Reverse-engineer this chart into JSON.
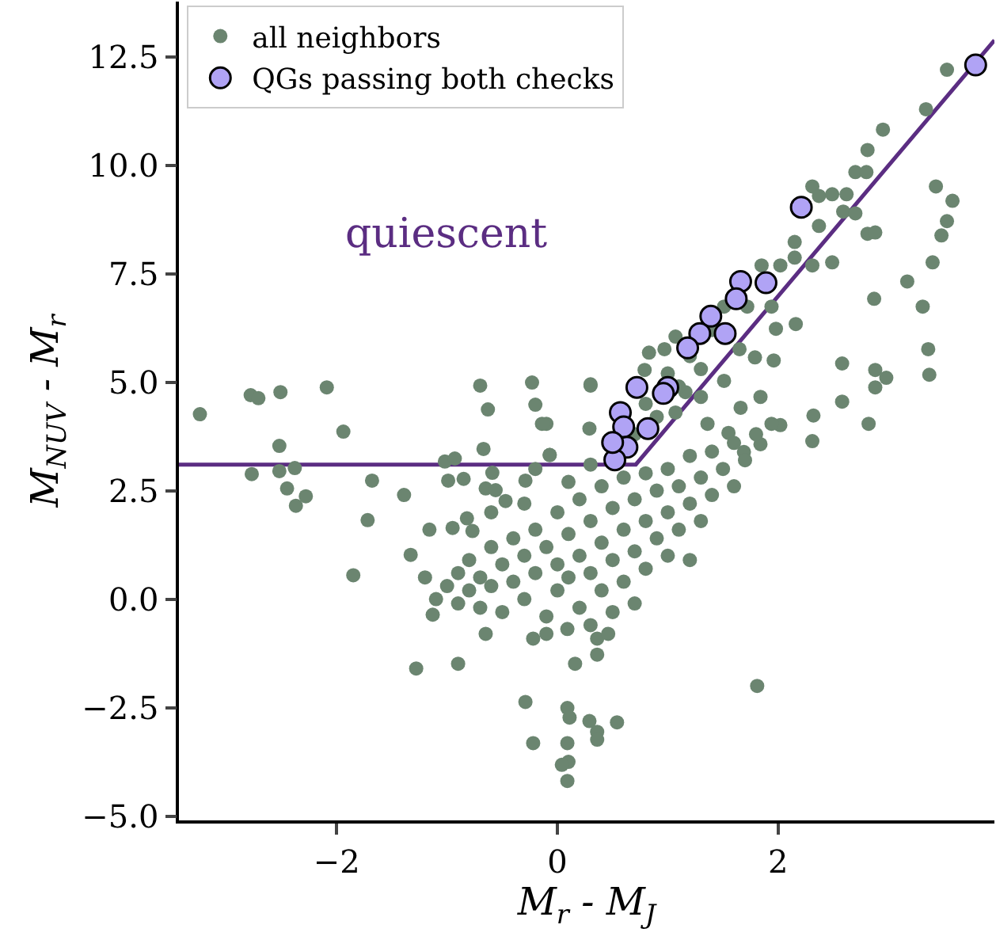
{
  "chart_data": {
    "type": "scatter",
    "xlabel": "M$_{r}$ - M$_{J}$",
    "ylabel": "M$_{NUV}$ - M$_{r}$",
    "xlim": [
      -3.43,
      3.96
    ],
    "ylim": [
      -5.1,
      13.77
    ],
    "xticks": [
      {
        "value": -2,
        "label": "−2"
      },
      0,
      2
    ],
    "yticks": [
      {
        "value": -5,
        "label": "−5.0"
      },
      {
        "value": -2.5,
        "label": "−2.5"
      },
      {
        "value": 0,
        "label": "0.0"
      },
      {
        "value": 2.5,
        "label": "2.5"
      },
      {
        "value": 5,
        "label": "5.0"
      },
      {
        "value": 7.5,
        "label": "7.5"
      },
      {
        "value": 10,
        "label": "10.0"
      },
      {
        "value": 12.5,
        "label": "12.5"
      }
    ],
    "grid": false,
    "legend": "top left",
    "marker": "circle",
    "annotations": [
      "quiescent"
    ],
    "series": [
      {
        "name": "all neighbors",
        "color": "#6b8570",
        "x": [
          -3.24,
          -2.78,
          -2.71,
          -2.51,
          -2.09,
          -1.94,
          -2.52,
          -2.77,
          -2.52,
          -2.38,
          -2.45,
          -2.37,
          -2.28,
          -1.68,
          -1.72,
          -1.39,
          -1.85,
          -1.28,
          -0.9,
          -1.16,
          -1.33,
          -1.13,
          -0.7,
          -0.23,
          -0.2,
          -0.63,
          -0.1,
          0.3,
          -0.67,
          -1.02,
          -0.93,
          -0.99,
          -0.85,
          -0.59,
          -0.65,
          -0.56,
          -0.47,
          -0.07,
          -0.29,
          -0.82,
          -0.95,
          -0.77,
          -0.29,
          -0.22,
          -0.22,
          0.09,
          0.11,
          0.09,
          0.1,
          0.04,
          0.09,
          0.29,
          0.36,
          0.36,
          0.54,
          0.16,
          0.36,
          0.36,
          0.46,
          0.09,
          -0.65,
          1.81,
          3.53,
          3.34,
          2.95,
          2.81,
          2.7,
          2.8,
          2.31,
          2.37,
          2.49,
          2.62,
          2.37,
          2.59,
          2.7,
          2.81,
          2.88,
          3.43,
          3.58,
          3.53,
          3.48,
          3.4,
          2.49,
          2.31,
          2.15,
          2.02,
          1.85,
          2.15,
          3.17,
          2.87,
          3.31,
          3.36,
          3.37,
          2.88,
          2.98,
          2.88,
          2.58,
          2.82,
          2.58,
          2.32,
          2.31,
          2.02,
          2.16,
          1.98,
          1.94,
          1.65,
          1.79,
          1.96,
          1.51,
          1.72,
          1.07,
          0.97,
          0.83,
          0.79,
          0.3,
          0.29,
          -0.07,
          -0.14,
          1.3,
          1.51,
          1.66,
          1.84,
          1.94,
          1.84,
          1.69,
          1.36,
          1.16,
          1.07,
          1.55,
          0.8,
          1.0,
          1.2,
          1.4,
          0.7,
          1.1,
          1.3,
          0.9,
          -1.0,
          -0.9,
          -0.9,
          -0.8,
          -0.8,
          -0.7,
          -0.7,
          -0.6,
          -0.6,
          -0.5,
          -0.5,
          -0.4,
          -0.4,
          -0.3,
          -0.3,
          -0.2,
          -0.2,
          -0.1,
          -0.1,
          0.0,
          0.0,
          0.0,
          0.1,
          0.1,
          0.2,
          0.2,
          0.2,
          0.3,
          0.3,
          0.4,
          0.4,
          0.4,
          0.5,
          0.5,
          0.6,
          0.6,
          0.6,
          0.7,
          0.7,
          0.8,
          0.8,
          0.8,
          0.9,
          0.9,
          1.0,
          1.0,
          1.0,
          1.1,
          1.1,
          1.2,
          1.2,
          1.3,
          1.3,
          1.4,
          1.4,
          1.5,
          1.6,
          1.6,
          1.7,
          1.8,
          -0.3,
          -0.6,
          0.1,
          -0.1,
          0.3,
          0.5,
          0.7,
          1.2,
          -1.1,
          -1.2,
          -0.2,
          0.3
        ],
        "values": [
          4.26,
          4.7,
          4.63,
          4.77,
          4.88,
          3.86,
          3.53,
          2.88,
          2.95,
          3.02,
          2.55,
          2.15,
          2.37,
          2.73,
          1.82,
          2.4,
          0.55,
          -1.6,
          -1.49,
          1.6,
          1.02,
          -0.36,
          4.92,
          4.99,
          4.48,
          4.37,
          4.04,
          4.92,
          3.46,
          3.17,
          3.24,
          2.73,
          2.77,
          2.91,
          2.55,
          2.51,
          2.26,
          3.32,
          2.73,
          1.86,
          1.64,
          1.57,
          -2.37,
          -3.32,
          -0.91,
          -2.51,
          -2.73,
          -3.32,
          -3.75,
          -3.82,
          -4.19,
          -2.81,
          -3.06,
          -3.24,
          -2.84,
          -1.49,
          -0.91,
          -1.28,
          -0.8,
          -0.69,
          -0.8,
          -2.0,
          12.2,
          11.29,
          10.82,
          10.35,
          9.84,
          9.84,
          9.51,
          9.29,
          9.33,
          9.33,
          8.6,
          8.93,
          8.89,
          8.42,
          8.45,
          9.51,
          9.18,
          8.71,
          8.38,
          7.76,
          7.76,
          7.69,
          8.23,
          7.69,
          7.69,
          7.87,
          7.32,
          6.92,
          6.74,
          5.76,
          5.17,
          5.28,
          5.1,
          4.88,
          5.43,
          4.04,
          4.55,
          4.23,
          3.64,
          4.01,
          6.34,
          6.23,
          6.74,
          5.76,
          5.57,
          5.5,
          6.74,
          6.74,
          6.05,
          5.76,
          5.68,
          5.28,
          4.95,
          3.93,
          3.32,
          4.04,
          4.66,
          5.03,
          4.41,
          4.66,
          4.04,
          3.57,
          3.39,
          4.04,
          4.77,
          4.3,
          3.83,
          4.5,
          5.2,
          5.6,
          6.2,
          3.8,
          4.9,
          5.3,
          4.2,
          0.3,
          0.6,
          -0.1,
          0.9,
          0.2,
          0.5,
          -0.2,
          1.2,
          0.3,
          0.8,
          -0.3,
          1.4,
          0.4,
          1.0,
          0.0,
          1.6,
          0.6,
          1.2,
          -0.4,
          0.8,
          2.0,
          0.2,
          1.5,
          0.5,
          2.3,
          1.0,
          -0.2,
          1.8,
          0.6,
          2.6,
          1.3,
          0.2,
          2.1,
          0.9,
          2.8,
          1.6,
          0.4,
          2.3,
          1.1,
          2.9,
          1.8,
          0.7,
          2.5,
          1.4,
          3.0,
          2.0,
          1.0,
          2.6,
          1.6,
          3.3,
          2.2,
          2.8,
          1.8,
          3.4,
          2.4,
          3.0,
          3.6,
          2.6,
          3.2,
          3.8,
          2.2,
          2.0,
          2.7,
          -0.8,
          -0.6,
          -0.3,
          -0.1,
          0.9,
          0.0,
          0.5,
          3.0,
          3.1
        ]
      },
      {
        "type": "line",
        "color": "#5b2d82",
        "marker": "none",
        "x": [
          -3.43,
          0.71,
          3.96
        ],
        "values": [
          3.1,
          3.1,
          12.88
        ]
      },
      {
        "name": "QGs passing both checks",
        "color": "#b0a3f5",
        "x": [
          3.79,
          2.21,
          1.89,
          1.66,
          1.62,
          1.39,
          1.52,
          1.29,
          1.18,
          1.0,
          0.96,
          0.72,
          0.82,
          0.57,
          0.6,
          0.63,
          0.52,
          0.5
        ],
        "values": [
          12.31,
          9.03,
          7.29,
          7.32,
          6.92,
          6.52,
          6.12,
          6.12,
          5.79,
          4.88,
          4.74,
          4.88,
          3.93,
          4.3,
          3.97,
          3.5,
          3.21,
          3.61
        ]
      }
    ]
  }
}
